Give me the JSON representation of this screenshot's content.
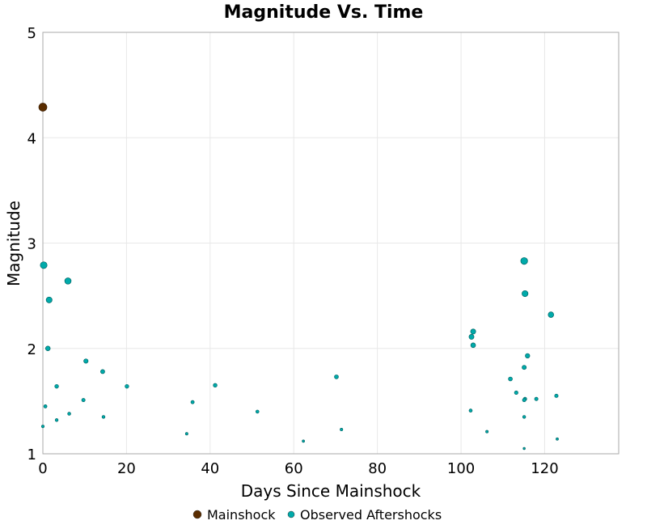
{
  "chart_data": {
    "type": "scatter",
    "title": "Magnitude Vs. Time",
    "xlabel": "Days Since Mainshock",
    "ylabel": "Magnitude",
    "xlim": [
      0,
      137.7
    ],
    "ylim": [
      1,
      5
    ],
    "xticks": [
      0,
      20,
      40,
      60,
      80,
      100,
      120
    ],
    "yticks": [
      1,
      2,
      3,
      4,
      5
    ],
    "grid": true,
    "legend_position": "bottom",
    "series": [
      {
        "name": "Mainshock",
        "color": "#5a2d00",
        "points": [
          [
            0,
            4.29
          ]
        ]
      },
      {
        "name": "Observed Aftershocks",
        "color": "#00aaaa",
        "points": [
          [
            0.2,
            2.79
          ],
          [
            6.0,
            2.64
          ],
          [
            1.5,
            2.46
          ],
          [
            1.2,
            2.0
          ],
          [
            10.3,
            1.88
          ],
          [
            14.3,
            1.78
          ],
          [
            3.3,
            1.64
          ],
          [
            20.1,
            1.64
          ],
          [
            9.7,
            1.51
          ],
          [
            0.6,
            1.45
          ],
          [
            6.3,
            1.38
          ],
          [
            3.3,
            1.32
          ],
          [
            14.5,
            1.35
          ],
          [
            0.0,
            1.26
          ],
          [
            35.8,
            1.49
          ],
          [
            41.2,
            1.65
          ],
          [
            34.4,
            1.19
          ],
          [
            51.3,
            1.4
          ],
          [
            62.3,
            1.12
          ],
          [
            70.2,
            1.73
          ],
          [
            71.4,
            1.23
          ],
          [
            115.1,
            2.83
          ],
          [
            115.3,
            2.52
          ],
          [
            121.5,
            2.32
          ],
          [
            102.9,
            2.16
          ],
          [
            102.5,
            2.11
          ],
          [
            102.9,
            2.03
          ],
          [
            115.9,
            1.93
          ],
          [
            115.1,
            1.82
          ],
          [
            111.8,
            1.71
          ],
          [
            113.2,
            1.58
          ],
          [
            115.3,
            1.52
          ],
          [
            115.1,
            1.51
          ],
          [
            118.0,
            1.52
          ],
          [
            122.8,
            1.55
          ],
          [
            102.3,
            1.41
          ],
          [
            115.1,
            1.35
          ],
          [
            106.2,
            1.21
          ],
          [
            123.0,
            1.14
          ],
          [
            115.1,
            1.05
          ]
        ]
      }
    ]
  }
}
